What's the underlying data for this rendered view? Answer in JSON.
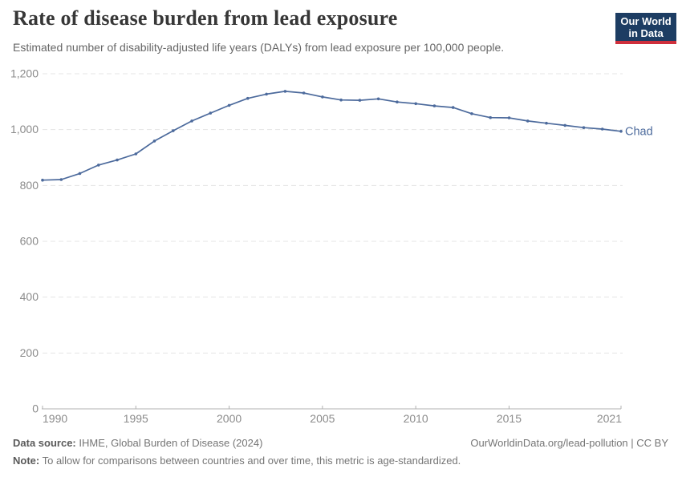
{
  "header": {
    "title": "Rate of disease burden from lead exposure",
    "subtitle": "Estimated number of disability-adjusted life years (DALYs) from lead exposure per 100,000 people.",
    "logo": {
      "line1": "Our World",
      "line2": "in Data"
    }
  },
  "chart_data": {
    "type": "line",
    "title": "Rate of disease burden from lead exposure",
    "entity": "Chad",
    "unit": "DALYs from lead exposure per 100,000 people",
    "xlim": [
      1990,
      2021
    ],
    "ylim": [
      0,
      1200
    ],
    "grid": "horizontal-dashed",
    "legend_position": "line-end-label",
    "x_ticks": [
      1990,
      1995,
      2000,
      2005,
      2010,
      2015,
      2021
    ],
    "x_tick_labels": [
      "1990",
      "1995",
      "2000",
      "2005",
      "2010",
      "2015",
      "2021"
    ],
    "y_ticks": [
      0,
      200,
      400,
      600,
      800,
      1000,
      1200
    ],
    "y_tick_labels": [
      "0",
      "200",
      "400",
      "600",
      "800",
      "1,000",
      "1,200"
    ],
    "series": [
      {
        "name": "Chad",
        "end_label": "Chad",
        "color": "#4C6A9C",
        "x": [
          1990,
          1991,
          1992,
          1993,
          1994,
          1995,
          1996,
          1997,
          1998,
          1999,
          2000,
          2001,
          2002,
          2003,
          2004,
          2005,
          2006,
          2007,
          2008,
          2009,
          2010,
          2011,
          2012,
          2013,
          2014,
          2015,
          2016,
          2017,
          2018,
          2019,
          2020,
          2021
        ],
        "values": [
          819,
          821,
          843,
          873,
          891,
          913,
          959,
          996,
          1031,
          1059,
          1087,
          1112,
          1127,
          1137,
          1131,
          1117,
          1106,
          1105,
          1110,
          1099,
          1093,
          1085,
          1079,
          1057,
          1043,
          1042,
          1031,
          1023,
          1015,
          1007,
          1002,
          994
        ]
      }
    ]
  },
  "footer": {
    "data_source_label": "Data source:",
    "data_source_text": "IHME, Global Burden of Disease (2024)",
    "link_text": "OurWorldinData.org/lead-pollution | CC BY",
    "note_label": "Note:",
    "note_text": "To allow for comparisons between countries and over time, this metric is age-standardized."
  },
  "colors": {
    "line": "#4C6A9C",
    "grid": "#e4e4e4",
    "axis": "#b0b0b0",
    "tick_label": "#8b8b8b",
    "title": "#373737",
    "subtitle": "#666666",
    "footer": "#757575",
    "logo_bg": "#1d3d63",
    "logo_red": "#cf2f3c"
  }
}
